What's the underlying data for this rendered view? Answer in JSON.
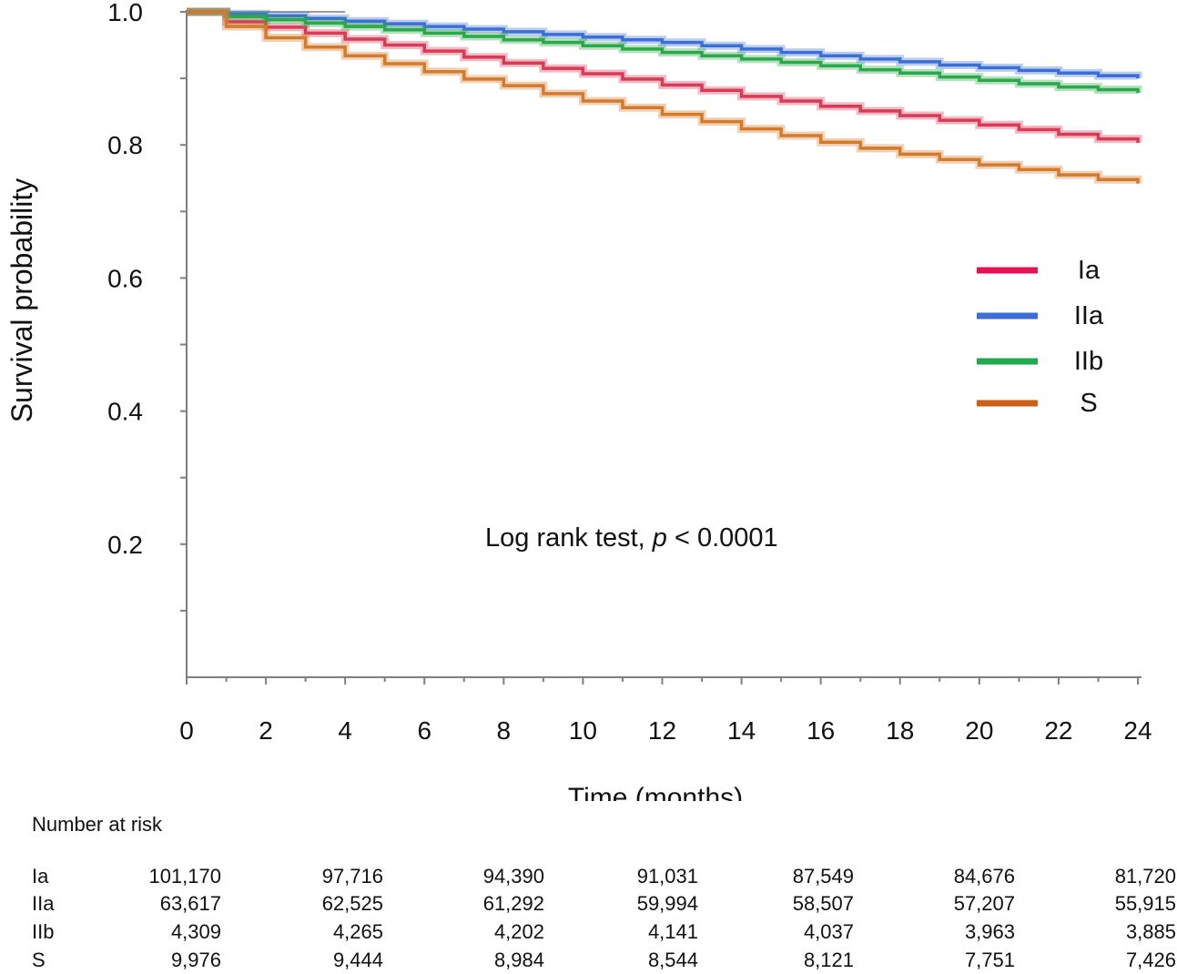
{
  "chart_data": {
    "type": "line",
    "step": true,
    "title": "",
    "xlabel": "Time (months)",
    "ylabel": "Survival probability",
    "xlim": [
      0,
      24
    ],
    "ylim": [
      0,
      1.0
    ],
    "x_ticks": [
      0,
      2,
      4,
      6,
      8,
      10,
      12,
      14,
      16,
      18,
      20,
      22,
      24
    ],
    "y_ticks": [
      0.2,
      0.4,
      0.6,
      0.8,
      1.0
    ],
    "y_tick_labels": [
      "0.2",
      "0.4",
      "0.6",
      "0.8",
      "1.0"
    ],
    "grid": false,
    "legend_position": "right",
    "annotation": {
      "text_before": "Log rank test, ",
      "text_italic": "p",
      "text_after": " < 0.0001"
    },
    "x": [
      0,
      1,
      2,
      3,
      4,
      5,
      6,
      7,
      8,
      9,
      10,
      11,
      12,
      13,
      14,
      15,
      16,
      17,
      18,
      19,
      20,
      21,
      22,
      23,
      24
    ],
    "series": [
      {
        "name": "Ia",
        "color": "#e8114f",
        "line_color": "#d93a55",
        "values": [
          1.0,
          0.985,
          0.977,
          0.968,
          0.959,
          0.95,
          0.941,
          0.932,
          0.923,
          0.915,
          0.907,
          0.899,
          0.89,
          0.882,
          0.873,
          0.866,
          0.858,
          0.851,
          0.844,
          0.837,
          0.83,
          0.823,
          0.816,
          0.809,
          0.803
        ]
      },
      {
        "name": "IIa",
        "color": "#3c6fd6",
        "line_color": "#3c6fd6",
        "values": [
          1.0,
          0.997,
          0.994,
          0.99,
          0.986,
          0.982,
          0.978,
          0.974,
          0.97,
          0.966,
          0.962,
          0.958,
          0.954,
          0.949,
          0.944,
          0.939,
          0.934,
          0.929,
          0.925,
          0.92,
          0.916,
          0.912,
          0.908,
          0.904,
          0.9
        ]
      },
      {
        "name": "IIb",
        "color": "#1faa4b",
        "line_color": "#2aa84a",
        "values": [
          1.0,
          0.993,
          0.988,
          0.983,
          0.978,
          0.973,
          0.968,
          0.963,
          0.958,
          0.954,
          0.949,
          0.944,
          0.939,
          0.934,
          0.929,
          0.924,
          0.919,
          0.913,
          0.908,
          0.902,
          0.897,
          0.892,
          0.887,
          0.883,
          0.878
        ]
      },
      {
        "name": "S",
        "color": "#cc5f18",
        "line_color": "#d47a2b",
        "values": [
          1.0,
          0.978,
          0.961,
          0.947,
          0.934,
          0.922,
          0.91,
          0.899,
          0.889,
          0.877,
          0.866,
          0.856,
          0.846,
          0.835,
          0.824,
          0.814,
          0.804,
          0.795,
          0.786,
          0.778,
          0.77,
          0.763,
          0.755,
          0.748,
          0.742
        ]
      }
    ]
  },
  "risk_table": {
    "title": "Number at risk",
    "times": [
      0,
      4,
      8,
      12,
      16,
      20,
      24
    ],
    "rows": [
      {
        "name": "Ia",
        "values": [
          "101,170",
          "97,716",
          "94,390",
          "91,031",
          "87,549",
          "84,676",
          "81,720"
        ]
      },
      {
        "name": "IIa",
        "values": [
          "63,617",
          "62,525",
          "61,292",
          "59,994",
          "58,507",
          "57,207",
          "55,915"
        ]
      },
      {
        "name": "IIb",
        "values": [
          "4,309",
          "4,265",
          "4,202",
          "4,141",
          "4,037",
          "3,963",
          "3,885"
        ]
      },
      {
        "name": "S",
        "values": [
          "9,976",
          "9,444",
          "8,984",
          "8,544",
          "8,121",
          "7,751",
          "7,426"
        ]
      }
    ]
  }
}
